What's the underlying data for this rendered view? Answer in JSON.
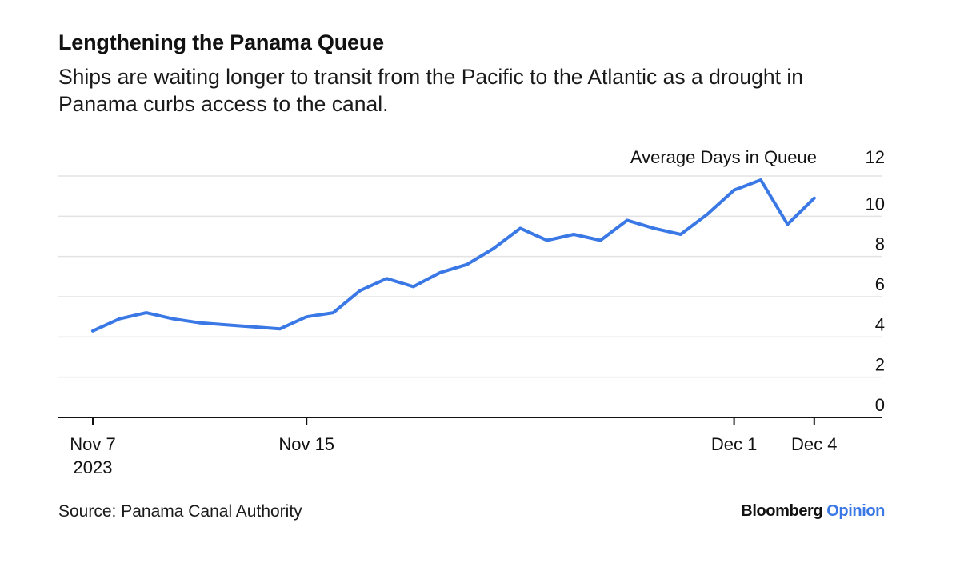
{
  "header": {
    "title": "Lengthening the Panama Queue",
    "subtitle": "Ships are waiting longer to transit from the Pacific to the Atlantic as a drought in Panama curbs access to the canal."
  },
  "footer": {
    "source": "Source: Panama Canal Authority",
    "brand_primary": "Bloomberg",
    "brand_secondary": "Opinion"
  },
  "colors": {
    "line": "#3a78e6",
    "grid": "#e3e3e3",
    "axis": "#111111",
    "brand_accent": "#3a78e6"
  },
  "chart_data": {
    "type": "line",
    "title": "Lengthening the Panama Queue",
    "ylabel": "Average Days in Queue",
    "xlabel": "",
    "ylim": [
      0,
      12
    ],
    "yticks": [
      0,
      2,
      4,
      6,
      8,
      10,
      12
    ],
    "xlim": [
      -1.3,
      29.5
    ],
    "x_ticks": [
      {
        "x": 0,
        "label": "Nov 7",
        "sublabel": "2023"
      },
      {
        "x": 8,
        "label": "Nov 15",
        "sublabel": ""
      },
      {
        "x": 24,
        "label": "Dec 1",
        "sublabel": ""
      },
      {
        "x": 27,
        "label": "Dec 4",
        "sublabel": ""
      }
    ],
    "grid": true,
    "series": [
      {
        "name": "Average Days in Queue",
        "x": [
          0,
          1,
          2,
          3,
          4,
          5,
          6,
          7,
          8,
          9,
          10,
          11,
          12,
          13,
          14,
          15,
          16,
          17,
          18,
          19,
          20,
          21,
          22,
          23,
          24,
          25,
          26,
          27
        ],
        "values": [
          4.3,
          4.9,
          5.2,
          4.9,
          4.7,
          4.6,
          4.5,
          4.4,
          5.0,
          5.2,
          6.3,
          6.9,
          6.5,
          7.2,
          7.6,
          8.4,
          9.4,
          8.8,
          9.1,
          8.8,
          9.8,
          9.4,
          9.1,
          10.1,
          11.3,
          11.8,
          9.6,
          10.9
        ]
      }
    ]
  }
}
